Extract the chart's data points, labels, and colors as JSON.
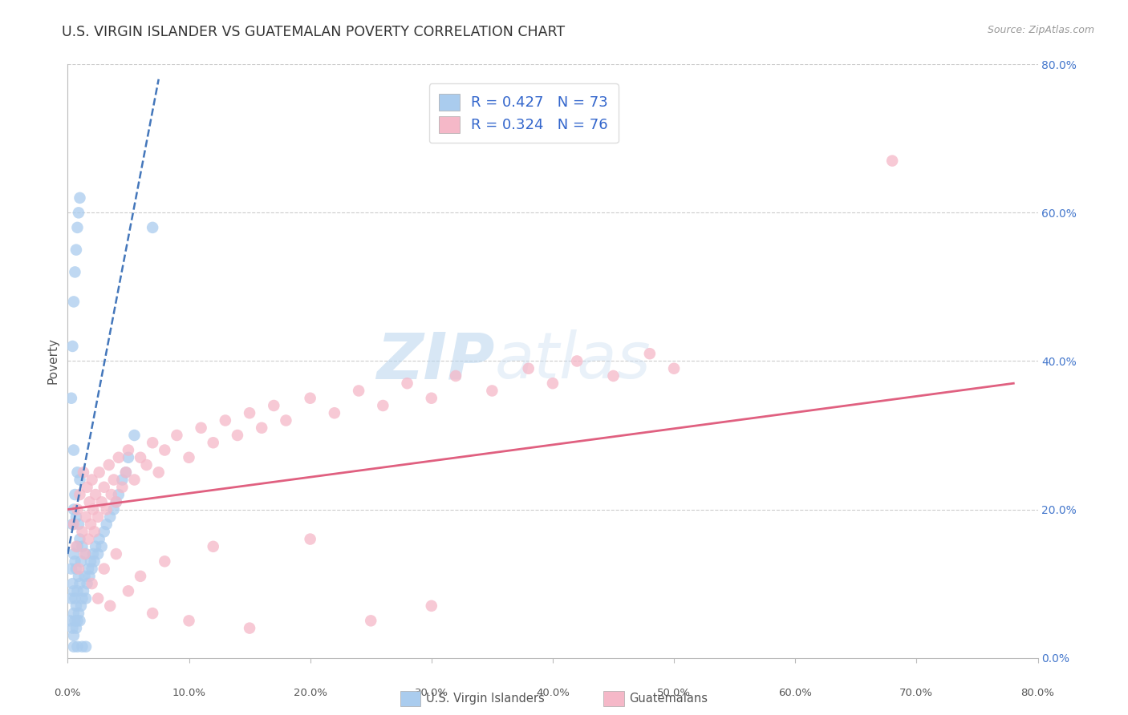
{
  "title": "U.S. VIRGIN ISLANDER VS GUATEMALAN POVERTY CORRELATION CHART",
  "source": "Source: ZipAtlas.com",
  "ylabel": "Poverty",
  "R1": 0.427,
  "N1": 73,
  "R2": 0.324,
  "N2": 76,
  "color_vi": "#aaccee",
  "color_vi_dark": "#5588cc",
  "color_vi_line": "#4477bb",
  "color_gt": "#f5b8c8",
  "color_gt_line": "#e06080",
  "xlim": [
    0.0,
    0.8
  ],
  "ylim": [
    0.0,
    0.8
  ],
  "watermark_zip": "ZIP",
  "watermark_atlas": "atlas",
  "background_color": "#ffffff",
  "grid_color": "#cccccc",
  "legend_label1": "U.S. Virgin Islanders",
  "legend_label2": "Guatemalans",
  "vi_x": [
    0.002,
    0.003,
    0.003,
    0.004,
    0.004,
    0.004,
    0.005,
    0.005,
    0.005,
    0.005,
    0.005,
    0.005,
    0.006,
    0.006,
    0.006,
    0.006,
    0.007,
    0.007,
    0.007,
    0.007,
    0.008,
    0.008,
    0.008,
    0.008,
    0.009,
    0.009,
    0.009,
    0.01,
    0.01,
    0.01,
    0.01,
    0.011,
    0.011,
    0.012,
    0.012,
    0.013,
    0.014,
    0.015,
    0.015,
    0.016,
    0.017,
    0.018,
    0.019,
    0.02,
    0.021,
    0.022,
    0.023,
    0.025,
    0.026,
    0.028,
    0.03,
    0.032,
    0.035,
    0.038,
    0.04,
    0.042,
    0.045,
    0.048,
    0.05,
    0.055,
    0.003,
    0.004,
    0.005,
    0.006,
    0.007,
    0.008,
    0.009,
    0.01,
    0.005,
    0.008,
    0.012,
    0.015,
    0.07
  ],
  "vi_y": [
    0.05,
    0.08,
    0.12,
    0.04,
    0.1,
    0.18,
    0.03,
    0.06,
    0.09,
    0.14,
    0.2,
    0.28,
    0.05,
    0.08,
    0.13,
    0.22,
    0.04,
    0.07,
    0.12,
    0.19,
    0.05,
    0.09,
    0.15,
    0.25,
    0.06,
    0.11,
    0.18,
    0.05,
    0.1,
    0.16,
    0.24,
    0.07,
    0.13,
    0.08,
    0.15,
    0.09,
    0.11,
    0.08,
    0.14,
    0.1,
    0.12,
    0.11,
    0.13,
    0.12,
    0.14,
    0.13,
    0.15,
    0.14,
    0.16,
    0.15,
    0.17,
    0.18,
    0.19,
    0.2,
    0.21,
    0.22,
    0.24,
    0.25,
    0.27,
    0.3,
    0.35,
    0.42,
    0.48,
    0.52,
    0.55,
    0.58,
    0.6,
    0.62,
    0.015,
    0.015,
    0.015,
    0.015,
    0.58
  ],
  "gt_x": [
    0.005,
    0.007,
    0.008,
    0.009,
    0.01,
    0.012,
    0.013,
    0.014,
    0.015,
    0.016,
    0.017,
    0.018,
    0.019,
    0.02,
    0.021,
    0.022,
    0.023,
    0.025,
    0.026,
    0.028,
    0.03,
    0.032,
    0.034,
    0.036,
    0.038,
    0.04,
    0.042,
    0.045,
    0.048,
    0.05,
    0.055,
    0.06,
    0.065,
    0.07,
    0.075,
    0.08,
    0.09,
    0.1,
    0.11,
    0.12,
    0.13,
    0.14,
    0.15,
    0.16,
    0.17,
    0.18,
    0.2,
    0.22,
    0.24,
    0.26,
    0.28,
    0.3,
    0.32,
    0.35,
    0.38,
    0.4,
    0.42,
    0.45,
    0.48,
    0.5,
    0.02,
    0.025,
    0.03,
    0.035,
    0.04,
    0.05,
    0.06,
    0.07,
    0.08,
    0.1,
    0.12,
    0.15,
    0.2,
    0.25,
    0.3,
    0.68
  ],
  "gt_y": [
    0.18,
    0.15,
    0.2,
    0.12,
    0.22,
    0.17,
    0.25,
    0.14,
    0.19,
    0.23,
    0.16,
    0.21,
    0.18,
    0.24,
    0.2,
    0.17,
    0.22,
    0.19,
    0.25,
    0.21,
    0.23,
    0.2,
    0.26,
    0.22,
    0.24,
    0.21,
    0.27,
    0.23,
    0.25,
    0.28,
    0.24,
    0.27,
    0.26,
    0.29,
    0.25,
    0.28,
    0.3,
    0.27,
    0.31,
    0.29,
    0.32,
    0.3,
    0.33,
    0.31,
    0.34,
    0.32,
    0.35,
    0.33,
    0.36,
    0.34,
    0.37,
    0.35,
    0.38,
    0.36,
    0.39,
    0.37,
    0.4,
    0.38,
    0.41,
    0.39,
    0.1,
    0.08,
    0.12,
    0.07,
    0.14,
    0.09,
    0.11,
    0.06,
    0.13,
    0.05,
    0.15,
    0.04,
    0.16,
    0.05,
    0.07,
    0.67
  ]
}
